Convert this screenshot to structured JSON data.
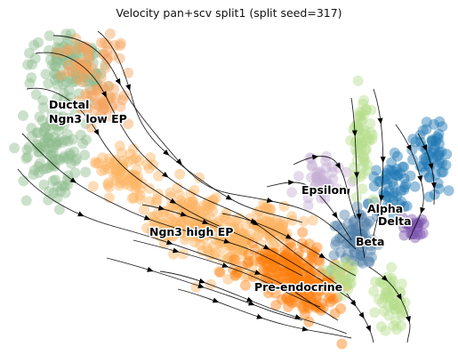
{
  "chart_data": {
    "type": "scatter",
    "title": "Velocity pan+scv split1 (split seed=317)",
    "xlabel": "",
    "ylabel": "",
    "axes_visible": false,
    "grid": false,
    "overlay": "velocity streamlines with arrowheads",
    "clusters": [
      {
        "label": "Ductal",
        "color": "#8fbc8f"
      },
      {
        "label": "Ngn3 low EP",
        "color": "#f4a460"
      },
      {
        "label": "Ngn3 high EP",
        "color": "#fdb462"
      },
      {
        "label": "Pre-endocrine",
        "color": "#ff7f0e"
      },
      {
        "label": "Beta",
        "color": "#4d7fa8"
      },
      {
        "label": "Alpha",
        "color": "#1f77b4"
      },
      {
        "label": "Delta",
        "color": "#7b52ae"
      },
      {
        "label": "Epsilon",
        "color": "#c5b0d5"
      }
    ],
    "light_green_color": "#b5de8c"
  }
}
